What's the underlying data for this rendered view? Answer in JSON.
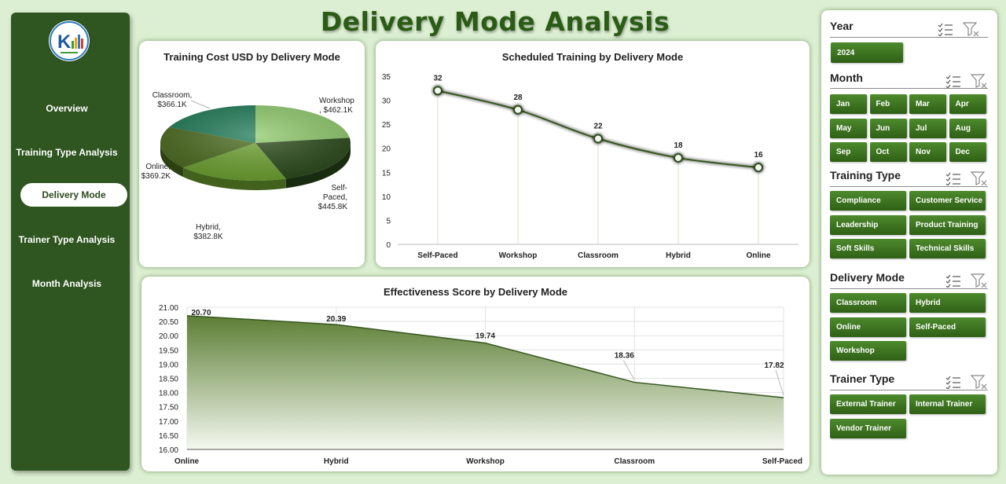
{
  "title": "Delivery Mode Analysis",
  "nav": {
    "items": [
      {
        "label": "Overview"
      },
      {
        "label": "Training Type Analysis"
      },
      {
        "label": "Delivery Mode"
      },
      {
        "label": "Trainer Type Analysis"
      },
      {
        "label": "Month Analysis"
      }
    ],
    "active_index": 2
  },
  "colors": {
    "accent": "#2f5520",
    "background": "#dcefd2",
    "chip": "#3d7a22"
  },
  "chart_data": [
    {
      "type": "pie",
      "title": "Training Cost USD by Delivery Mode",
      "slices": [
        {
          "label": "Workshop",
          "value": 462.1,
          "display": "Workshop\n, $462.1K",
          "color": "#8fca6b"
        },
        {
          "label": "Self-Paced",
          "value": 445.8,
          "display": "Self-\nPaced,\n$445.8K",
          "color": "#2a4a1a"
        },
        {
          "label": "Hybrid",
          "value": 382.8,
          "display": "Hybrid,\n$382.8K",
          "color": "#6ea231"
        },
        {
          "label": "Online",
          "value": 369.2,
          "display": "Online,\n$369.2K",
          "color": "#4a6a1e"
        },
        {
          "label": "Classroom",
          "value": 366.1,
          "display": "Classroom,\n$366.1K",
          "color": "#1f7a56"
        }
      ]
    },
    {
      "type": "line",
      "title": "Scheduled Training by Delivery Mode",
      "categories": [
        "Self-Paced",
        "Workshop",
        "Classroom",
        "Hybrid",
        "Online"
      ],
      "values": [
        32,
        28,
        22,
        18,
        16
      ],
      "ylim": [
        0,
        35
      ],
      "yticks": [
        0,
        5,
        10,
        15,
        20,
        25,
        30,
        35
      ]
    },
    {
      "type": "area",
      "title": "Effectiveness Score by Delivery Mode",
      "categories": [
        "Online",
        "Hybrid",
        "Workshop",
        "Classroom",
        "Self-Paced"
      ],
      "values": [
        20.7,
        20.39,
        19.74,
        18.36,
        17.82
      ],
      "ylim": [
        16.0,
        21.0
      ],
      "yticks": [
        "16.00",
        "16.50",
        "17.00",
        "17.50",
        "18.00",
        "18.50",
        "19.00",
        "19.50",
        "20.00",
        "20.50",
        "21.00"
      ]
    }
  ],
  "slicers": {
    "year": {
      "title": "Year",
      "items": [
        "2024"
      ]
    },
    "month": {
      "title": "Month",
      "items": [
        "Jan",
        "Feb",
        "Mar",
        "Apr",
        "May",
        "Jun",
        "Jul",
        "Aug",
        "Sep",
        "Oct",
        "Nov",
        "Dec"
      ]
    },
    "training_type": {
      "title": "Training Type",
      "items": [
        "Compliance",
        "Customer Service",
        "Leadership",
        "Product Training",
        "Soft Skills",
        "Technical Skills"
      ]
    },
    "delivery_mode": {
      "title": "Delivery Mode",
      "items": [
        "Classroom",
        "Hybrid",
        "Online",
        "Self-Paced",
        "Workshop"
      ]
    },
    "trainer_type": {
      "title": "Trainer Type",
      "items": [
        "External Trainer",
        "Internal Trainer",
        "Vendor Trainer"
      ]
    }
  }
}
